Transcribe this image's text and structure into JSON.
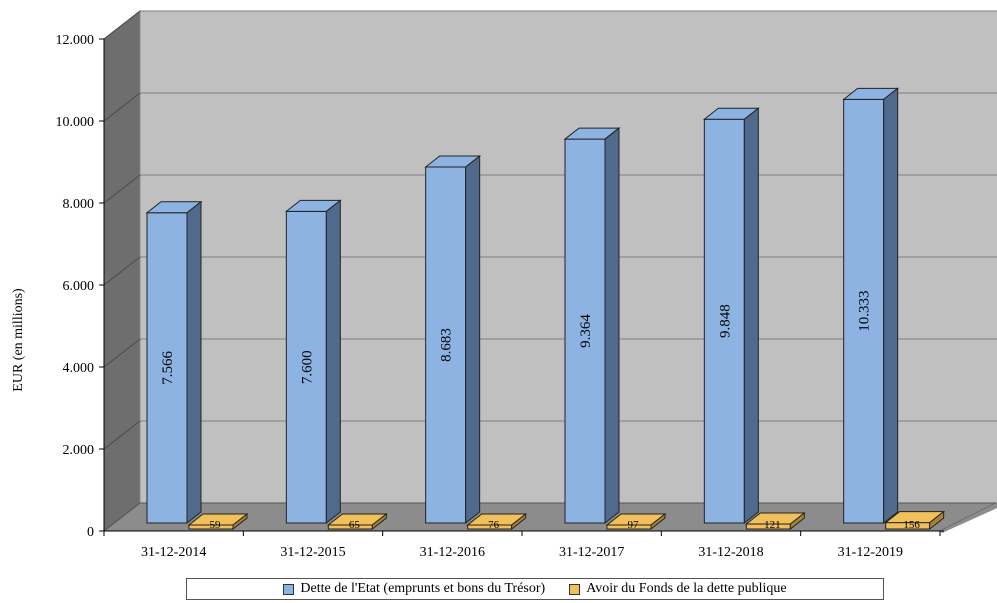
{
  "chart_data": {
    "type": "bar",
    "categories": [
      "31-12-2014",
      "31-12-2015",
      "31-12-2016",
      "31-12-2017",
      "31-12-2018",
      "31-12-2019"
    ],
    "series": [
      {
        "name": "Dette de l'Etat (emprunts et bons du Trésor)",
        "values": [
          7566,
          7600,
          8683,
          9364,
          9848,
          10333
        ],
        "labels": [
          "7.566",
          "7.600",
          "8.683",
          "9.364",
          "9.848",
          "10.333"
        ],
        "color": "#8db3e2"
      },
      {
        "name": "Avoir du Fonds de la dette publique",
        "values": [
          59,
          65,
          76,
          97,
          121,
          156
        ],
        "labels": [
          "59",
          "65",
          "76",
          "97",
          "121",
          "156"
        ],
        "color": "#f2c05a"
      }
    ],
    "ylabel": "EUR (en millions)",
    "ylim": [
      0,
      12000
    ],
    "yticks": [
      0,
      2000,
      4000,
      6000,
      8000,
      10000,
      12000
    ],
    "ytick_labels": [
      "0",
      "2.000",
      "4.000",
      "6.000",
      "8.000",
      "10.000",
      "12.000"
    ],
    "grid": true,
    "legend_position": "bottom",
    "style": "3d-column",
    "colors": {
      "wall": "#c0c0c0",
      "floor": "#8c8c8c",
      "side_wall": "#6e6e6e",
      "grid": "#7f7f7f"
    }
  }
}
